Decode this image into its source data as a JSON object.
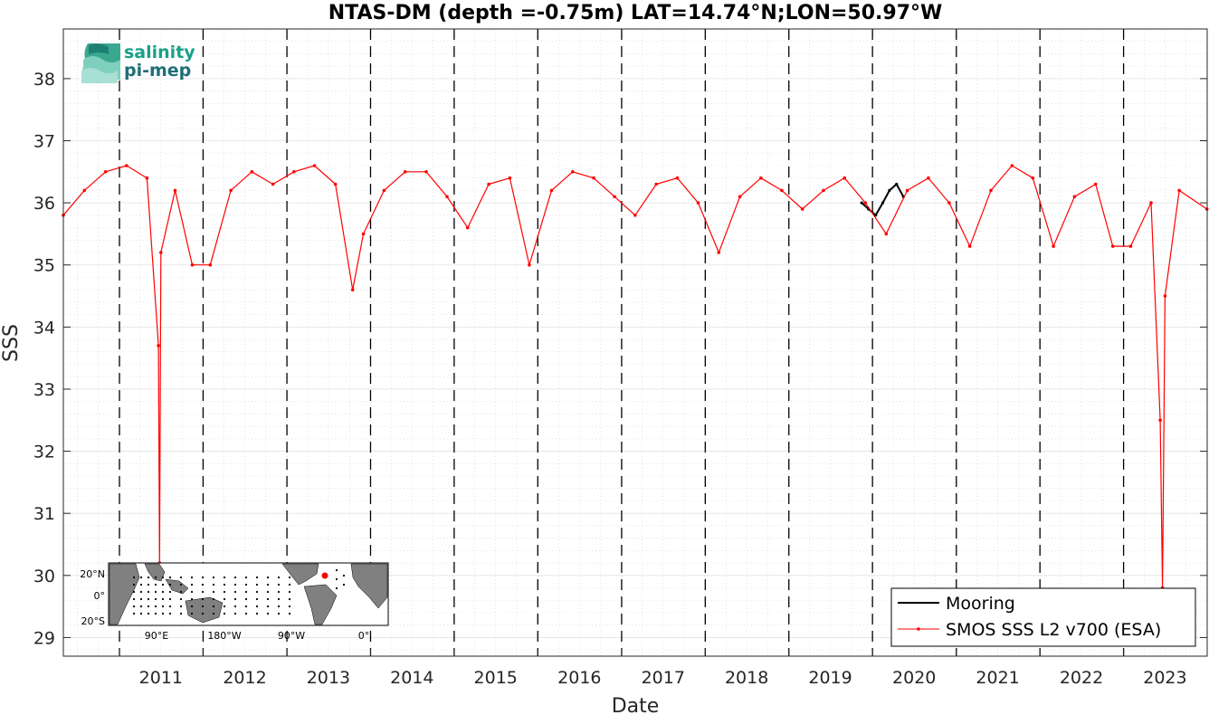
{
  "chart_data": {
    "type": "line",
    "title": "NTAS-DM (depth =-0.75m) LAT=14.74°N;LON=50.97°W",
    "xlabel": "Date",
    "ylabel": "SSS",
    "xlim": [
      "2010-05-01",
      "2024-01-01"
    ],
    "ylim": [
      28.7,
      38.8
    ],
    "y_ticks": [
      29,
      30,
      31,
      32,
      33,
      34,
      35,
      36,
      37,
      38
    ],
    "x_ticks": [
      "2011",
      "2012",
      "2013",
      "2014",
      "2015",
      "2016",
      "2017",
      "2018",
      "2019",
      "2020",
      "2021",
      "2022",
      "2023"
    ],
    "grid": true,
    "year_boundaries_dashed": true,
    "legend_position": "bottom-right",
    "series": [
      {
        "name": "Mooring",
        "color": "#000000",
        "x": [
          "2019-11-15",
          "2019-12-15",
          "2020-01-15",
          "2020-02-15",
          "2020-03-15",
          "2020-04-15",
          "2020-05-15"
        ],
        "y": [
          36.0,
          35.9,
          35.8,
          36.0,
          36.2,
          36.3,
          36.1
        ]
      },
      {
        "name": "SMOS SSS L2 v700 (ESA)",
        "color": "#ff0000",
        "x": [
          "2010-05-01",
          "2010-08-01",
          "2010-11-01",
          "2011-02-01",
          "2011-05-01",
          "2011-06-20",
          "2011-06-25",
          "2011-07-01",
          "2011-09-01",
          "2011-11-15",
          "2012-02-01",
          "2012-05-01",
          "2012-08-01",
          "2012-11-01",
          "2013-02-01",
          "2013-05-01",
          "2013-08-01",
          "2013-10-15",
          "2013-12-01",
          "2014-03-01",
          "2014-06-01",
          "2014-09-01",
          "2014-12-01",
          "2015-03-01",
          "2015-06-01",
          "2015-09-01",
          "2015-11-25",
          "2016-03-01",
          "2016-06-01",
          "2016-09-01",
          "2016-12-01",
          "2017-03-01",
          "2017-06-01",
          "2017-09-01",
          "2017-12-01",
          "2018-03-01",
          "2018-06-01",
          "2018-09-01",
          "2018-12-01",
          "2019-03-01",
          "2019-06-01",
          "2019-09-01",
          "2019-12-01",
          "2020-03-01",
          "2020-06-01",
          "2020-09-01",
          "2020-12-01",
          "2021-03-01",
          "2021-06-01",
          "2021-09-01",
          "2021-12-01",
          "2022-03-01",
          "2022-06-01",
          "2022-09-01",
          "2022-11-15",
          "2023-02-01",
          "2023-05-01",
          "2023-06-10",
          "2023-06-20",
          "2023-07-01",
          "2023-09-01",
          "2023-12-31"
        ],
        "y": [
          35.8,
          36.2,
          36.5,
          36.6,
          36.4,
          33.7,
          30.2,
          35.2,
          36.2,
          35.0,
          35.0,
          36.2,
          36.5,
          36.3,
          36.5,
          36.6,
          36.3,
          34.6,
          35.5,
          36.2,
          36.5,
          36.5,
          36.1,
          35.6,
          36.3,
          36.4,
          35.0,
          36.2,
          36.5,
          36.4,
          36.1,
          35.8,
          36.3,
          36.4,
          36.0,
          35.2,
          36.1,
          36.4,
          36.2,
          35.9,
          36.2,
          36.4,
          36.0,
          35.5,
          36.2,
          36.4,
          36.0,
          35.3,
          36.2,
          36.6,
          36.4,
          35.3,
          36.1,
          36.3,
          35.3,
          35.3,
          36.0,
          32.5,
          29.8,
          34.5,
          36.2,
          35.9
        ]
      }
    ]
  },
  "logo": {
    "line1": "salinity",
    "line2": "pi-mep"
  },
  "inset_map": {
    "lat_labels": [
      "20°N",
      "0°",
      "20°S"
    ],
    "lon_labels": [
      "90°E",
      "180°W",
      "90°W",
      "0°"
    ],
    "marker_color": "#ff0000",
    "land_color": "#808080"
  }
}
